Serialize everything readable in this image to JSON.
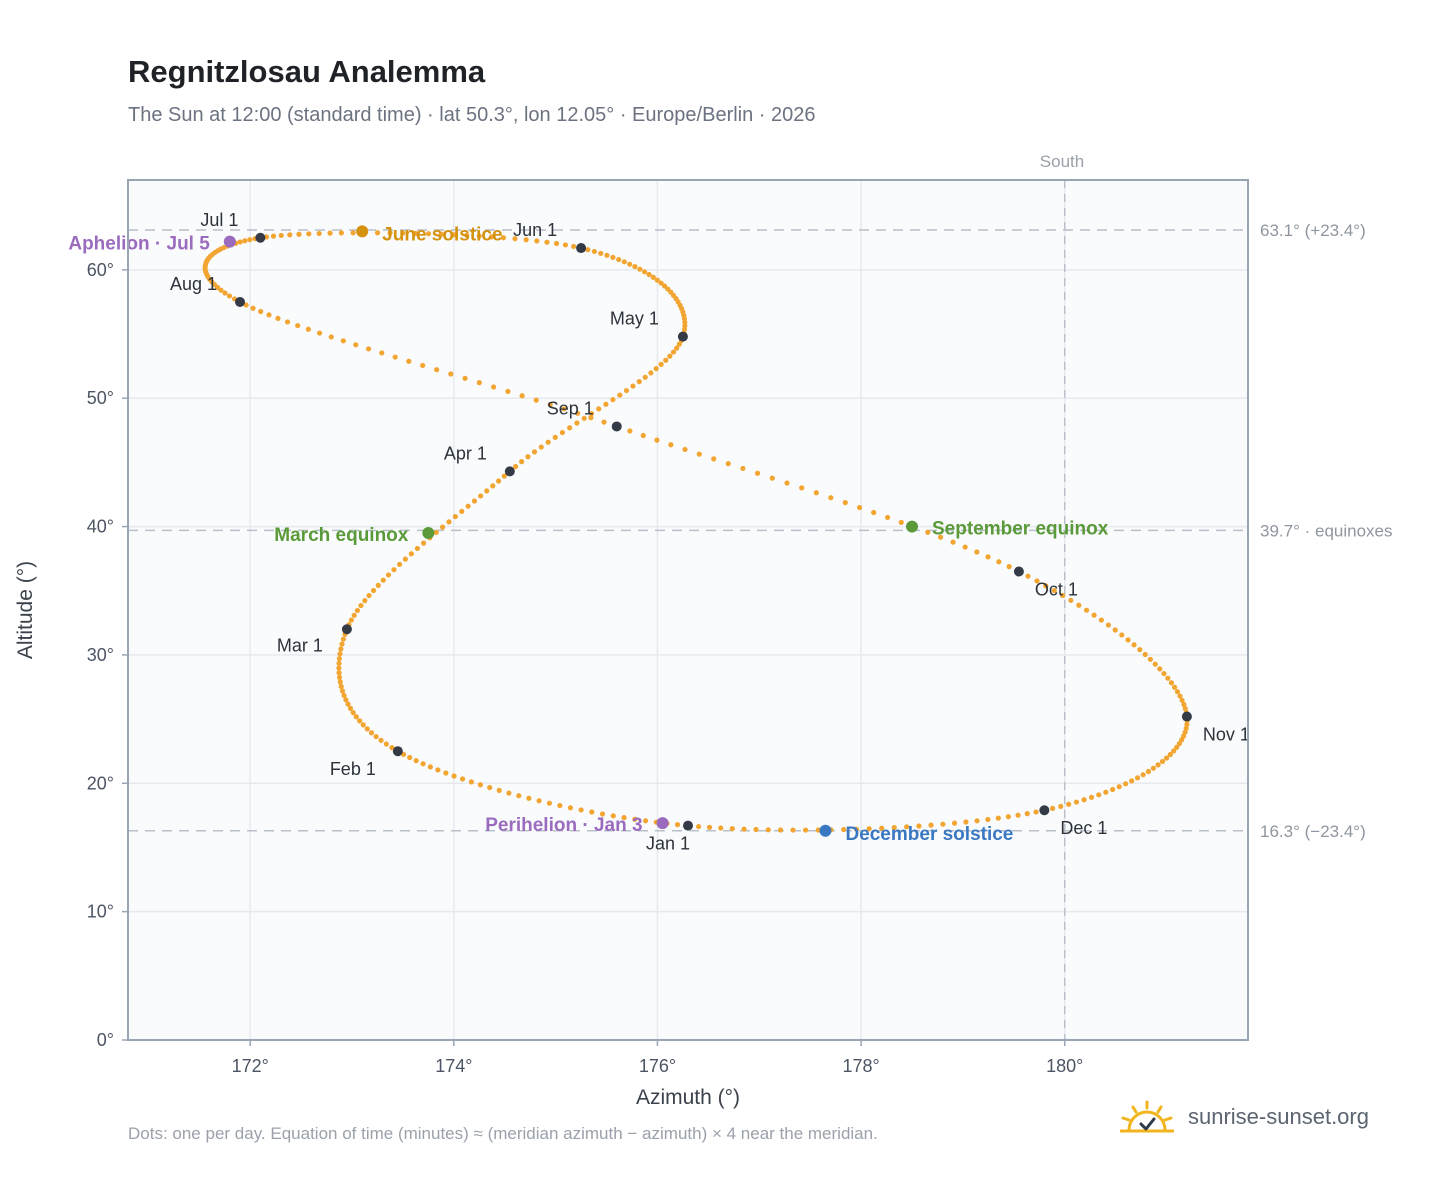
{
  "header": {
    "title": "Regnitzlosau Analemma",
    "subtitle": "The Sun at 12:00 (standard time) · lat 50.3°, lon 12.05° · Europe/Berlin · 2026"
  },
  "footer": {
    "note": "Dots: one per day. Equation of time (minutes) ≈ (meridian azimuth − azimuth) × 4 near the meridian.",
    "brand": "sunrise-sunset.org",
    "brand_icon": "sun-logo-icon"
  },
  "colors": {
    "curve": "#f2a531",
    "month_dot": "#343a46",
    "solstice_june": "#d4920f",
    "solstice_december": "#3a78c2",
    "equinox": "#5b9a38",
    "apsis": "#9b6bbd",
    "guide": "#b9c0ca",
    "grid": "#e6eaef",
    "plot_bg": "#f9fbfd",
    "frame": "#9aa5b4"
  },
  "chart_data": {
    "type": "scatter",
    "title": "Regnitzlosau Analemma",
    "xlabel": "Azimuth (°)",
    "ylabel": "Altitude (°)",
    "xlim": [
      170.8,
      181.8
    ],
    "ylim": [
      0,
      67
    ],
    "x_ticks": [
      172,
      174,
      176,
      178,
      180
    ],
    "x_tick_labels": [
      "172°",
      "174°",
      "176°",
      "178°",
      "180°"
    ],
    "y_ticks": [
      0,
      10,
      20,
      30,
      40,
      50,
      60
    ],
    "y_tick_labels": [
      "0°",
      "10°",
      "20°",
      "30°",
      "40°",
      "50°",
      "60°"
    ],
    "grid": true,
    "south_line": {
      "azimuth": 180,
      "label": "South"
    },
    "reference_lines": [
      {
        "altitude": 63.1,
        "label": "63.1° (+23.4°)"
      },
      {
        "altitude": 39.7,
        "label": "39.7° · equinoxes"
      },
      {
        "altitude": 16.3,
        "label": "16.3° (−23.4°)"
      }
    ],
    "month_markers": [
      {
        "label": "Jan 1",
        "azimuth": 176.3,
        "altitude": 16.7
      },
      {
        "label": "Feb 1",
        "azimuth": 173.45,
        "altitude": 22.5
      },
      {
        "label": "Mar 1",
        "azimuth": 172.95,
        "altitude": 32.0
      },
      {
        "label": "Apr 1",
        "azimuth": 174.55,
        "altitude": 44.3
      },
      {
        "label": "May 1",
        "azimuth": 176.25,
        "altitude": 54.8
      },
      {
        "label": "Jun 1",
        "azimuth": 175.25,
        "altitude": 61.7
      },
      {
        "label": "Jul 1",
        "azimuth": 172.1,
        "altitude": 62.5
      },
      {
        "label": "Aug 1",
        "azimuth": 171.9,
        "altitude": 57.5
      },
      {
        "label": "Sep 1",
        "azimuth": 175.6,
        "altitude": 47.8
      },
      {
        "label": "Oct 1",
        "azimuth": 179.55,
        "altitude": 36.5
      },
      {
        "label": "Nov 1",
        "azimuth": 181.2,
        "altitude": 25.2
      },
      {
        "label": "Dec 1",
        "azimuth": 179.8,
        "altitude": 17.9
      }
    ],
    "events": [
      {
        "label": "June solstice",
        "azimuth": 173.1,
        "altitude": 63.0,
        "color_key": "solstice_june"
      },
      {
        "label": "December solstice",
        "azimuth": 177.65,
        "altitude": 16.3,
        "color_key": "solstice_december"
      },
      {
        "label": "March equinox",
        "azimuth": 173.75,
        "altitude": 39.5,
        "color_key": "equinox"
      },
      {
        "label": "September equinox",
        "azimuth": 178.5,
        "altitude": 40.0,
        "color_key": "equinox"
      },
      {
        "label": "Aphelion · Jul 5",
        "azimuth": 171.8,
        "altitude": 62.2,
        "color_key": "apsis"
      },
      {
        "label": "Perihelion · Jan 3",
        "azimuth": 176.05,
        "altitude": 16.9,
        "color_key": "apsis"
      }
    ],
    "curve_path": [
      {
        "month": "Jan 1",
        "azimuth": 176.3,
        "altitude": 16.7
      },
      {
        "month": "Feb 1",
        "azimuth": 173.45,
        "altitude": 22.5
      },
      {
        "month": "Mar 1",
        "azimuth": 172.95,
        "altitude": 32.0
      },
      {
        "month": "Apr 1",
        "azimuth": 174.55,
        "altitude": 44.3
      },
      {
        "month": "May 1",
        "azimuth": 176.25,
        "altitude": 54.8
      },
      {
        "month": "Jun 1",
        "azimuth": 175.25,
        "altitude": 61.7
      },
      {
        "month": "Jul 1",
        "azimuth": 172.1,
        "altitude": 62.5
      },
      {
        "month": "Aug 1",
        "azimuth": 171.9,
        "altitude": 57.5
      },
      {
        "month": "Sep 1",
        "azimuth": 175.6,
        "altitude": 47.8
      },
      {
        "month": "Oct 1",
        "azimuth": 179.55,
        "altitude": 36.5
      },
      {
        "month": "Nov 1",
        "azimuth": 181.2,
        "altitude": 25.2
      },
      {
        "month": "Dec 1",
        "azimuth": 179.8,
        "altitude": 17.9
      }
    ]
  }
}
